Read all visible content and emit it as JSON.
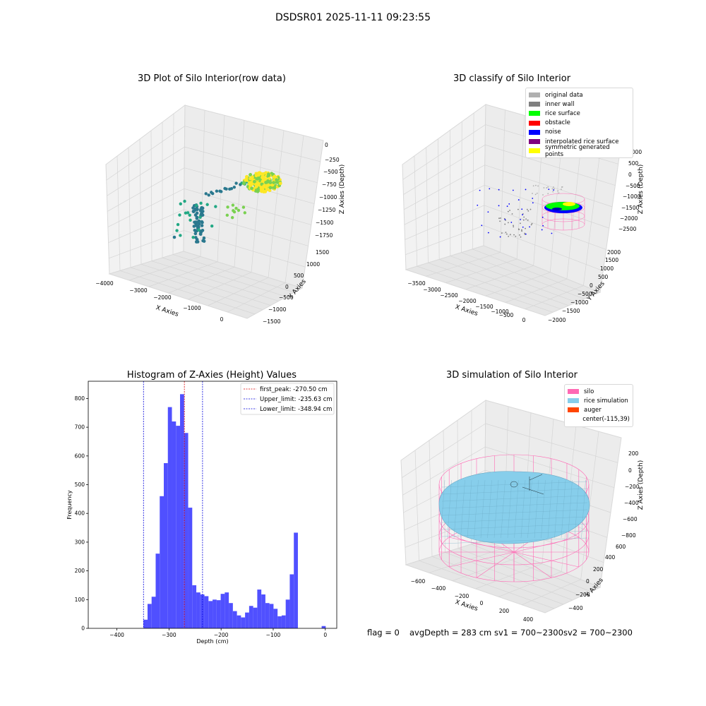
{
  "suptitle": "DSDSR01 2025-11-11 09:23:55",
  "footer": {
    "flag": "flag = 0",
    "avg": "avgDepth = 283 cm",
    "sv1": "sv1 = 700~2300",
    "sv2": "sv2 = 700~2300"
  },
  "chart_data": [
    {
      "type": "scatter",
      "title": "3D Plot of Silo Interior(row data)",
      "xlabel": "X Axies",
      "ylabel": "Y Axies",
      "zlabel": "Z Axies (Depth)",
      "x_ticks": [
        "−4000",
        "−3000",
        "−2000",
        "−1000",
        "0"
      ],
      "y_ticks": [
        "−1500",
        "−1000",
        "−500",
        "0",
        "500",
        "1000",
        "1500"
      ],
      "z_ticks": [
        "0",
        "−250",
        "−500",
        "−750",
        "−1000",
        "−1250",
        "−1500",
        "−1750"
      ],
      "colormap": [
        "#2a788e",
        "#22a884",
        "#7ad151",
        "#fde725"
      ]
    },
    {
      "type": "scatter",
      "title": "3D classify of Silo Interior",
      "xlabel": "X Axies",
      "ylabel": "Y Axies",
      "zlabel": "Z Axies (Depth)",
      "x_ticks": [
        "−3500",
        "−3000",
        "−2500",
        "−2000",
        "−1500",
        "−1000",
        "−500",
        "0"
      ],
      "y_ticks": [
        "−2000",
        "−1500",
        "−1000",
        "−500",
        "0",
        "500",
        "1000",
        "1500",
        "2000"
      ],
      "z_ticks": [
        "1000",
        "500",
        "0",
        "−500",
        "−1000",
        "−1500",
        "−2000",
        "−2500"
      ],
      "legend": [
        {
          "label": "original data",
          "color": "#b0b0b0"
        },
        {
          "label": "inner wall",
          "color": "#808080"
        },
        {
          "label": "rice surface",
          "color": "#00ff00"
        },
        {
          "label": "obstacle",
          "color": "#ff0000"
        },
        {
          "label": "noise",
          "color": "#0000ff"
        },
        {
          "label": "interpolated rice surface",
          "color": "#800080"
        },
        {
          "label": "symmetric generated points",
          "color": "#ffff00"
        }
      ]
    },
    {
      "type": "bar",
      "title": "Histogram of Z-Axies (Height) Values",
      "xlabel": "Depth (cm)",
      "ylabel": "Frequency",
      "xlim": [
        -455,
        22
      ],
      "ylim": [
        0,
        860
      ],
      "x_ticks": [
        -400,
        -300,
        -200,
        -100,
        0
      ],
      "y_ticks": [
        0,
        100,
        200,
        300,
        400,
        500,
        600,
        700,
        800
      ],
      "bin_start": -349,
      "bin_width": 7.8,
      "values": [
        30,
        85,
        110,
        260,
        460,
        575,
        770,
        720,
        705,
        815,
        680,
        420,
        150,
        125,
        118,
        112,
        95,
        100,
        98,
        120,
        125,
        88,
        60,
        45,
        38,
        55,
        78,
        72,
        135,
        118,
        88,
        85,
        68,
        42,
        45,
        100,
        188,
        333
      ],
      "extra_bars": [
        {
          "x": -7,
          "width": 7.8,
          "value": 8
        }
      ],
      "bar_color": "#5050ff",
      "lines": [
        {
          "label": "first_peak: -270.50 cm",
          "x": -270.5,
          "color": "#dd0000"
        },
        {
          "label": "Upper_limit: -235.63 cm",
          "x": -235.63,
          "color": "#0000dd"
        },
        {
          "label": "Lower_limit: -348.94 cm",
          "x": -348.94,
          "color": "#0000dd"
        }
      ]
    },
    {
      "type": "area",
      "title": "3D simulation of Silo Interior",
      "xlabel": "X Axies",
      "ylabel": "Y Axies",
      "zlabel": "Z Axies (Depth)",
      "x_ticks": [
        "−600",
        "−400",
        "−200",
        "0",
        "200",
        "400"
      ],
      "y_ticks": [
        "−400",
        "−200",
        "0",
        "200",
        "400",
        "600"
      ],
      "z_ticks": [
        "200",
        "0",
        "−200",
        "−400",
        "−600",
        "−800"
      ],
      "legend": [
        {
          "label": "silo",
          "color": "#ff69b4"
        },
        {
          "label": "rice simulation",
          "color": "#87ceeb"
        },
        {
          "label": "auger",
          "color": "#ff4500"
        },
        {
          "label": "center(-115,39)",
          "color": ""
        }
      ]
    }
  ]
}
